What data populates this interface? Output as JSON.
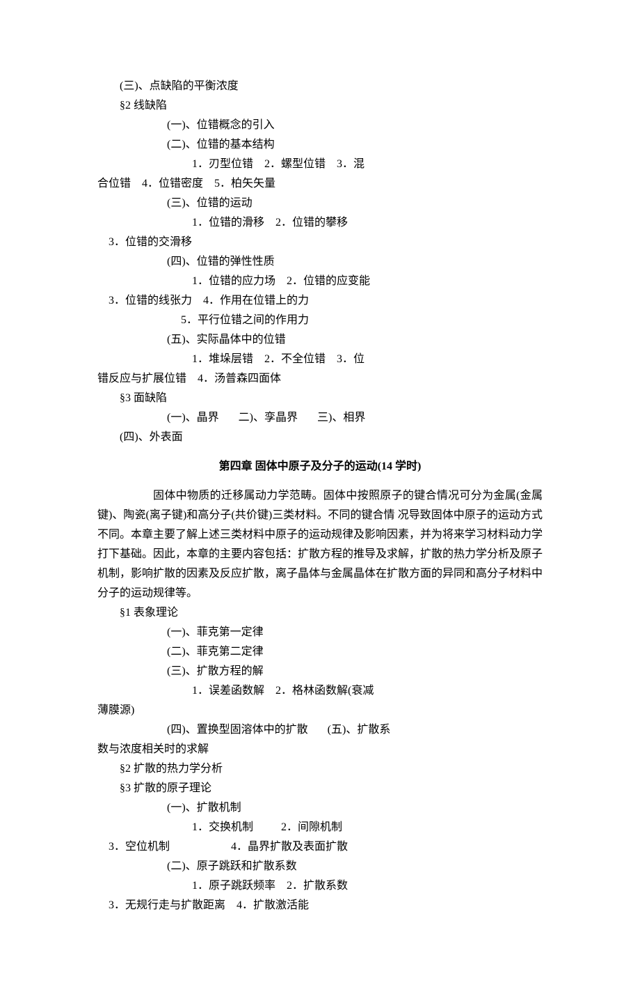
{
  "lines": {
    "l1": "        (三)、点缺陷的平衡浓度",
    "l2": "        §2 线缺陷",
    "l3": "                         (一)、位错概念的引入",
    "l4": "                         (二)、位错的基本结构",
    "l5": "                                  1．刃型位错    2．螺型位错    3．混",
    "l6": "合位错    4．位错密度    5．柏矢矢量",
    "l7": "                         (三)、位错的运动",
    "l8": "                                  1．位错的滑移    2．位错的攀移",
    "l9": "    3．位错的交滑移",
    "l10": "                         (四)、位错的弹性性质",
    "l11": "                                  1．位错的应力场    2．位错的应变能",
    "l12": "    3．位错的线张力    4．作用在位错上的力",
    "l13": "                              5．平行位错之间的作用力",
    "l14": "                         (五)、实际晶体中的位错",
    "l15": "                                  1．堆垛层错    2．不全位错    3．位",
    "l16": "错反应与扩展位错    4．汤普森四面体",
    "l17": "        §3 面缺陷",
    "l18": "                         (一)、晶界       二)、孪晶界       三)、相界",
    "l19": "        (四)、外表面"
  },
  "chapter4": {
    "title": "第四章    固体中原子及分子的运动(14 学时)",
    "para": "固体中物质的迁移属动力学范畴。固体中按照原子的键合情况可分为金属(金属键)、陶瓷(离子键)和高分子(共价键)三类材料。不同的键合情 况导致固体中原子的运动方式不同。本章主要了解上述三类材料中原子的运动规律及影响因素，并为将来学习材料动力学打下基础。因此，本章的主要内容包括：扩散方程的推导及求解，扩散的热力学分析及原子机制，影响扩散的因素及反应扩散，离子晶体与金属晶体在扩散方面的异同和高分子材料中分子的运动规律等。"
  },
  "lines2": {
    "m1": "        §1 表象理论",
    "m2": "                         (一)、菲克第一定律",
    "m3": "                         (二)、菲克第二定律",
    "m4": "                         (三)、扩散方程的解",
    "m5": "                                  1．误差函数解    2．格林函数解(衰减",
    "m6": "薄膜源)",
    "m7": "                         (四)、置换型固溶体中的扩散       (五)、扩散系",
    "m8": "数与浓度相关时的求解",
    "m9": "        §2 扩散的热力学分析",
    "m10": "        §3 扩散的原子理论",
    "m11": "                         (一)、扩散机制",
    "m12": "                                  1．交换机制          2．间隙机制",
    "m13": "    3．空位机制                      4．晶界扩散及表面扩散",
    "m14": "                         (二)、原子跳跃和扩散系数",
    "m15": "                                  1．原子跳跃频率    2．扩散系数",
    "m16": "    3．无规行走与扩散距离    4．扩散激活能"
  }
}
